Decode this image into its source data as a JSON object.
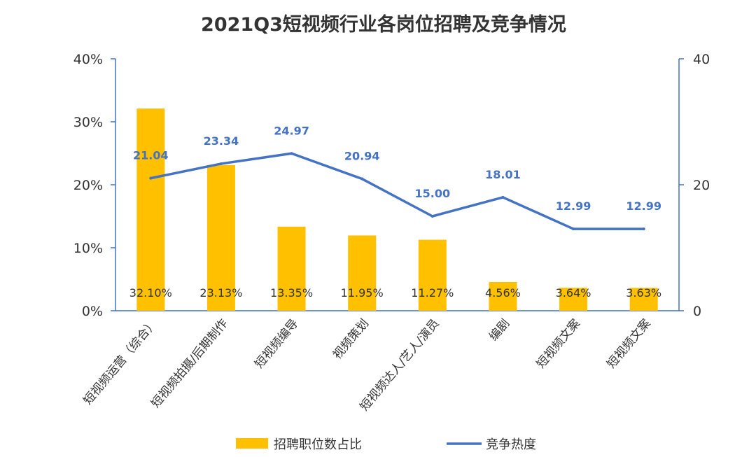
{
  "chart_data": {
    "type": "bar",
    "title": "2021Q3短视频行业各岗位招聘及竞争情况",
    "categories": [
      "短视频运营（综合）",
      "短视频拍摄/后期制作",
      "短视频编导",
      "视频策划",
      "短视频达人/艺人/演员",
      "编剧",
      "短视频文案",
      "短视频文案"
    ],
    "series": [
      {
        "name": "招聘职位数占比",
        "type": "bar",
        "axis": "left",
        "color": "#ffc000",
        "values": [
          32.1,
          23.13,
          13.35,
          11.95,
          11.27,
          4.56,
          3.64,
          3.63
        ],
        "labels": [
          "32.10%",
          "23.13%",
          "13.35%",
          "11.95%",
          "11.27%",
          "4.56%",
          "3.64%",
          "3.63%"
        ]
      },
      {
        "name": "竞争热度",
        "type": "line",
        "axis": "right",
        "color": "#4472c4",
        "values": [
          21.04,
          23.34,
          24.97,
          20.94,
          15.0,
          18.01,
          12.99,
          12.99
        ],
        "labels": [
          "21.04",
          "23.34",
          "24.97",
          "20.94",
          "15.00",
          "18.01",
          "12.99",
          "12.99"
        ]
      }
    ],
    "y_left": {
      "range": [
        0,
        40
      ],
      "ticks": [
        "0%",
        "10%",
        "20%",
        "30%",
        "40%"
      ]
    },
    "y_right": {
      "range": [
        0,
        40
      ],
      "ticks": [
        "0",
        "20",
        "40"
      ]
    },
    "legend": {
      "position": "bottom"
    },
    "grid": false
  }
}
